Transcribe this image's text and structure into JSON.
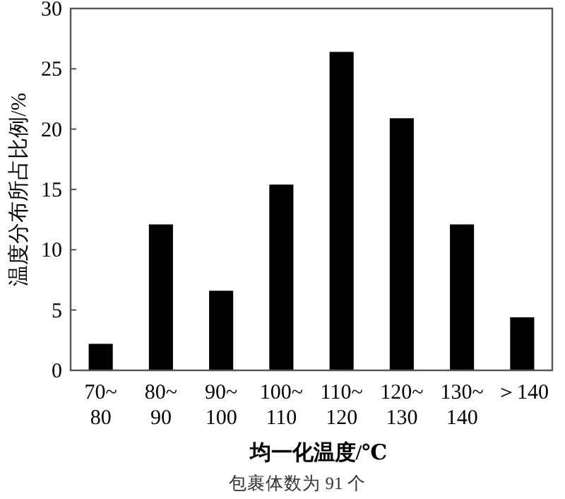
{
  "chart_data": {
    "type": "bar",
    "categories": [
      "70~80",
      "80~90",
      "90~100",
      "100~110",
      "110~120",
      "120~130",
      "130~140",
      "＞140"
    ],
    "values": [
      2.2,
      12.1,
      6.6,
      15.4,
      26.4,
      20.9,
      12.1,
      4.4
    ],
    "color": "#000000",
    "ylim": [
      0,
      30
    ],
    "yticks": [
      0,
      5,
      10,
      15,
      20,
      25,
      30
    ],
    "xlabel": "均一化温度/℃",
    "ylabel": "温度分布所占比例/%",
    "annotations": [
      "包裹体数为 91 个"
    ],
    "grid": false
  }
}
